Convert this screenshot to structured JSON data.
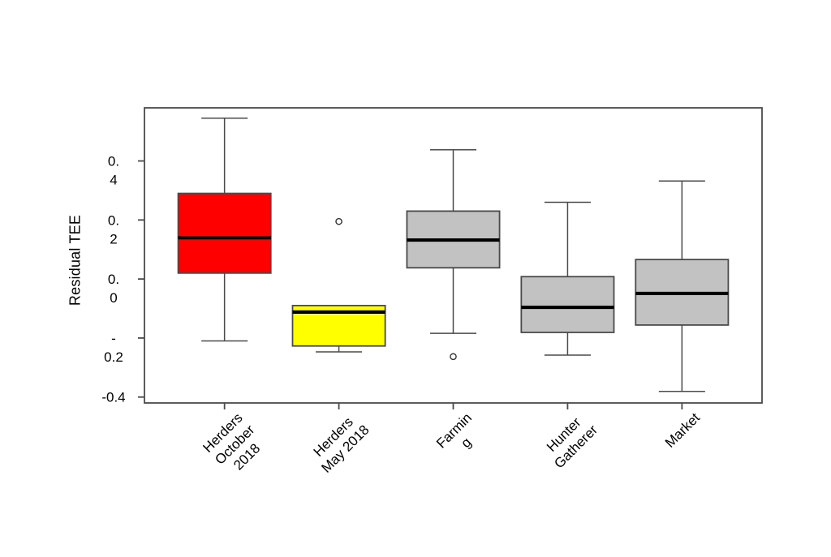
{
  "figure": {
    "background": "#ffffff"
  },
  "chart_data": {
    "type": "boxplot",
    "title": "",
    "xlabel": "",
    "ylabel": "Residual TEE",
    "ylim": [
      -0.42,
      0.58
    ],
    "yticks": [
      0.4,
      0.2,
      0.0,
      -0.2,
      -0.4
    ],
    "ytick_label_lines": [
      [
        "0.",
        "4"
      ],
      [
        "0.",
        "2"
      ],
      [
        "0.",
        "0"
      ],
      [
        "-",
        "0.2"
      ],
      [
        "-0.4"
      ]
    ],
    "grid": false,
    "legend": null,
    "frame_color": "#4a4a4a",
    "median_color": "#000000",
    "outlier_color": "#333333",
    "categories": [
      {
        "name": "Herders October 2018",
        "label_lines": [
          "Herders",
          "October",
          "2018"
        ],
        "color": "#ff0000",
        "stats": {
          "whisker_low": -0.21,
          "q1": 0.02,
          "median": 0.14,
          "q3": 0.29,
          "whisker_high": 0.545
        },
        "outliers": []
      },
      {
        "name": "Herders May 2018",
        "label_lines": [
          "Herders",
          "May 2018"
        ],
        "color": "#ffff00",
        "stats": {
          "whisker_low": -0.247,
          "q1": -0.227,
          "median": -0.112,
          "q3": -0.09,
          "whisker_high": -0.09
        },
        "outliers": [
          0.195
        ]
      },
      {
        "name": "Farming",
        "label_lines": [
          "Farmin",
          "g"
        ],
        "color": "#c2c2c2",
        "stats": {
          "whisker_low": -0.184,
          "q1": 0.038,
          "median": 0.132,
          "q3": 0.23,
          "whisker_high": 0.438
        },
        "outliers": [
          -0.263
        ]
      },
      {
        "name": "Hunter Gatherer",
        "label_lines": [
          "Hunter",
          "Gatherer"
        ],
        "color": "#c2c2c2",
        "stats": {
          "whisker_low": -0.258,
          "q1": -0.181,
          "median": -0.096,
          "q3": 0.008,
          "whisker_high": 0.26
        },
        "outliers": []
      },
      {
        "name": "Market",
        "label_lines": [
          "Market"
        ],
        "color": "#c2c2c2",
        "stats": {
          "whisker_low": -0.381,
          "q1": -0.156,
          "median": -0.049,
          "q3": 0.066,
          "whisker_high": 0.332
        },
        "outliers": []
      }
    ]
  }
}
